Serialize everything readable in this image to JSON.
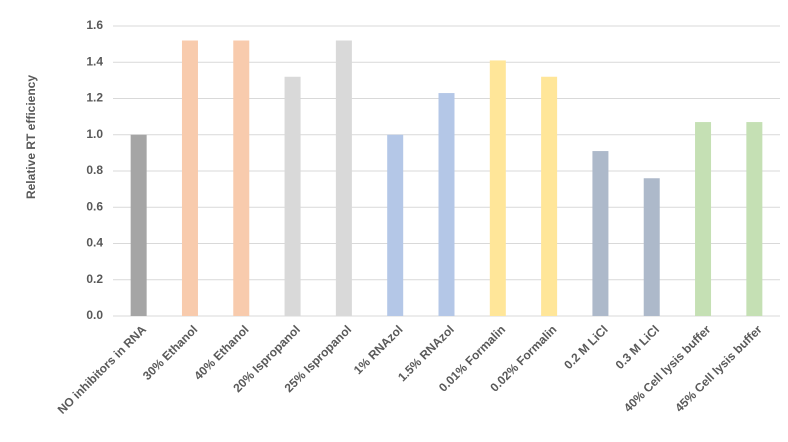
{
  "chart_data": {
    "type": "bar",
    "y_label": "Relative  RT efficiency",
    "categories": [
      "NO inhibitors in RNA",
      "30% Ethanol",
      "40% Ethanol",
      "20% Ispropanol",
      "25% Ispropanol",
      "1% RNAzol",
      "1.5% RNAzol",
      "0.01% Formalin",
      "0.02% Formalin",
      "0.2 M LiCl",
      "0.3 M LiCl",
      "40% Cell lysis buffer",
      "45% Cell lysis buffer"
    ],
    "values": [
      1.0,
      1.52,
      1.52,
      1.32,
      1.52,
      1.0,
      1.23,
      1.41,
      1.32,
      0.91,
      0.76,
      1.07,
      1.07
    ],
    "colors": [
      "#a5a5a5",
      "#f8cbad",
      "#f8cbad",
      "#d9d9d9",
      "#d9d9d9",
      "#b4c7e7",
      "#b4c7e7",
      "#ffe699",
      "#ffe699",
      "#adb9ca",
      "#adb9ca",
      "#c5e0b4",
      "#c5e0b4"
    ],
    "ylim": [
      0,
      1.6
    ],
    "yticks": [
      {
        "value": 0,
        "label": "0.0"
      },
      0.2,
      0.4,
      0.6,
      0.8,
      {
        "value": 1,
        "label": "1.0"
      },
      1.2,
      1.4,
      1.6
    ],
    "grid": true
  }
}
